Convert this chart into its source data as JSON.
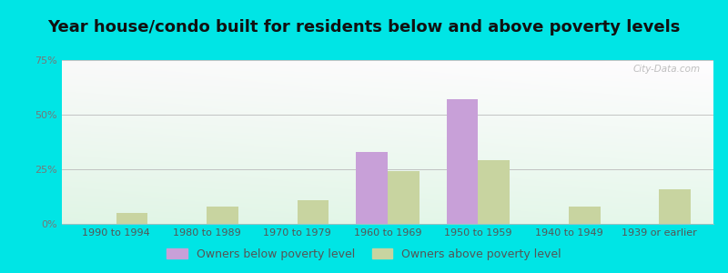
{
  "title": "Year house/condo built for residents below and above poverty levels",
  "categories": [
    "1990 to 1994",
    "1980 to 1989",
    "1970 to 1979",
    "1960 to 1969",
    "1950 to 1959",
    "1940 to 1949",
    "1939 or earlier"
  ],
  "below_poverty": [
    0,
    0,
    0,
    33,
    57,
    0,
    0
  ],
  "above_poverty": [
    5,
    8,
    11,
    24,
    29,
    8,
    16
  ],
  "below_color": "#c8a0d8",
  "above_color": "#c8d4a0",
  "ylim": [
    0,
    75
  ],
  "yticks": [
    0,
    25,
    50,
    75
  ],
  "yticklabels": [
    "0%",
    "25%",
    "50%",
    "75%"
  ],
  "legend_below": "Owners below poverty level",
  "legend_above": "Owners above poverty level",
  "outer_bg": "#00e5e5",
  "bar_width": 0.35,
  "title_fontsize": 13,
  "tick_fontsize": 8.0,
  "legend_fontsize": 9,
  "watermark": "City-Data.com"
}
